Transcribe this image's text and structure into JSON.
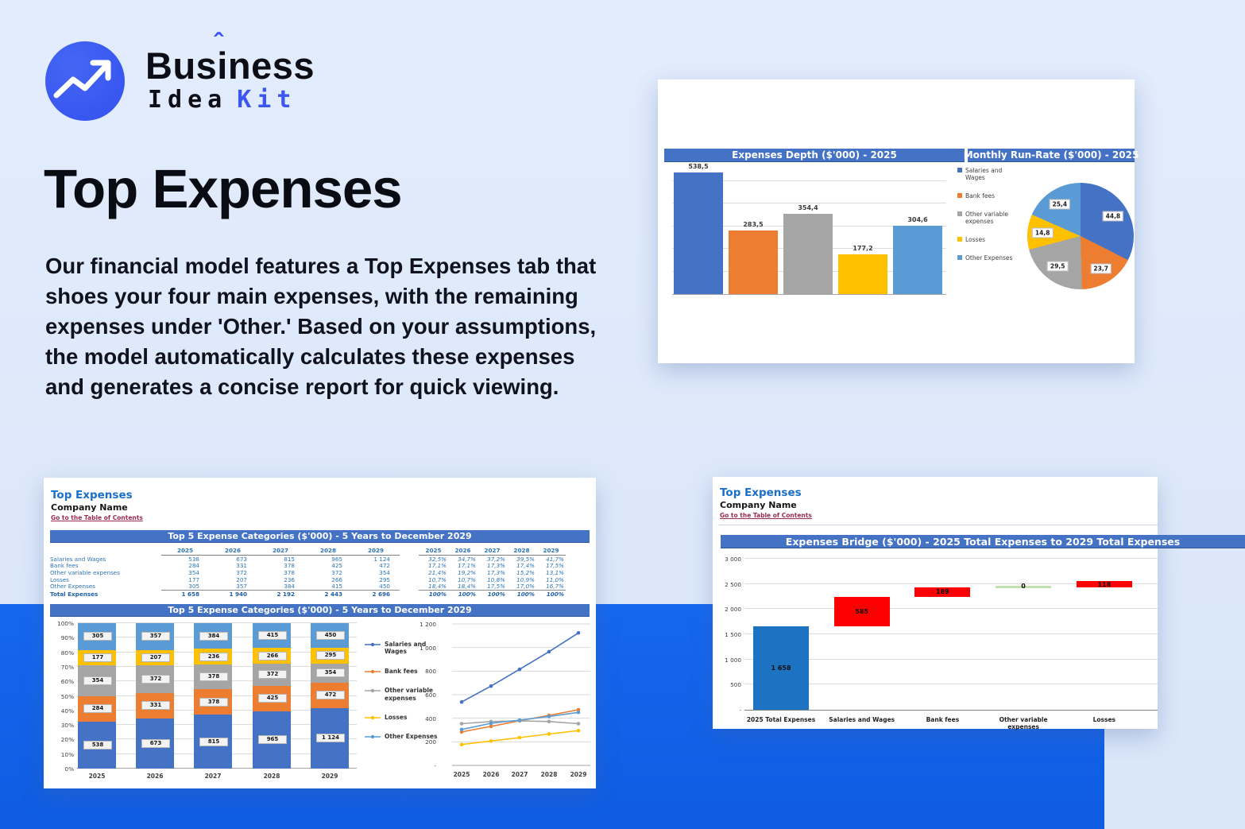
{
  "brand": {
    "part1": "Bus",
    "part2": "i",
    "part3": "ness",
    "hat": "ˆ",
    "word2": "Idea",
    "word3": "Kit"
  },
  "hero": {
    "title": "Top Expenses",
    "body": "Our financial model features a Top Expenses tab that shoes your four main expenses, with the remaining expenses under 'Other.' Based on your assumptions, the model automatically calculates these expenses and generates a concise report for quick viewing."
  },
  "palette": {
    "accent": "#3b57f0",
    "page_bg": "#dde9fb",
    "bottom_band": "#1263e9",
    "excel_header": "#4472C4",
    "series_colors": [
      "#4472C4",
      "#ED7D31",
      "#A5A5A5",
      "#FFC000",
      "#5B9BD5"
    ],
    "waterfall_total": "#1d72c2",
    "waterfall_increase": "#fe0000",
    "waterfall_zero": "#c2dfae",
    "link": "#9a2d50",
    "table_text": "#2e75b6"
  },
  "sheet": {
    "title": "Top Expenses",
    "company": "Company Name",
    "toc": "Go to the Table of Contents"
  },
  "depth_card": {
    "bar_header": "Expenses Depth ($'000) - 2025",
    "pie_header": "Monthly Run-Rate ($'000) - 2025",
    "legend": [
      "Salaries and Wages",
      "Bank fees",
      "Other variable expenses",
      "Losses",
      "Other Expenses"
    ]
  },
  "top5_card": {
    "banner": "Top 5 Expense Categories ($'000) - 5 Years to December 2029",
    "years": [
      "2025",
      "2026",
      "2027",
      "2028",
      "2029"
    ],
    "rows": [
      {
        "label": "Salaries and Wages",
        "values": [
          "538",
          "673",
          "815",
          "965",
          "1 124"
        ],
        "pcts": [
          "32,5%",
          "34,7%",
          "37,2%",
          "39,5%",
          "41,7%"
        ]
      },
      {
        "label": "Bank fees",
        "values": [
          "284",
          "331",
          "378",
          "425",
          "472"
        ],
        "pcts": [
          "17,1%",
          "17,1%",
          "17,3%",
          "17,4%",
          "17,5%"
        ]
      },
      {
        "label": "Other variable expenses",
        "values": [
          "354",
          "372",
          "378",
          "372",
          "354"
        ],
        "pcts": [
          "21,4%",
          "19,2%",
          "17,3%",
          "15,2%",
          "13,1%"
        ]
      },
      {
        "label": "Losses",
        "values": [
          "177",
          "207",
          "236",
          "266",
          "295"
        ],
        "pcts": [
          "10,7%",
          "10,7%",
          "10,8%",
          "10,9%",
          "11,0%"
        ]
      },
      {
        "label": "Other Expenses",
        "values": [
          "305",
          "357",
          "384",
          "415",
          "450"
        ],
        "pcts": [
          "18,4%",
          "18,4%",
          "17,5%",
          "17,0%",
          "16,7%"
        ]
      }
    ],
    "total": {
      "label": "Total Expenses",
      "values": [
        "1 658",
        "1 940",
        "2 192",
        "2 443",
        "2 696"
      ],
      "pcts": [
        "100%",
        "100%",
        "100%",
        "100%",
        "100%"
      ]
    },
    "stacked_y_labels": [
      "100%",
      "90%",
      "80%",
      "70%",
      "60%",
      "50%",
      "40%",
      "30%",
      "20%",
      "10%",
      "0%"
    ],
    "line_y_labels": [
      "1 200",
      "1 000",
      "800",
      "600",
      "400",
      "200",
      "-"
    ]
  },
  "bridge_card": {
    "banner": "Expenses Bridge ($'000) - 2025 Total Expenses to 2029 Total Expenses",
    "y_axis": [
      "3 000",
      "2 500",
      "2 000",
      "1 500",
      "1 000",
      "500",
      "-"
    ]
  },
  "chart_data": [
    {
      "id": "expenses-depth",
      "type": "bar",
      "title": "Expenses Depth ($'000) - 2025",
      "categories": [
        "Salaries and Wages",
        "Bank fees",
        "Other variable expenses",
        "Losses",
        "Other Expenses"
      ],
      "values": [
        538.5,
        283.5,
        354.4,
        177.2,
        304.6
      ],
      "data_labels": [
        "538,5",
        "283,5",
        "354,4",
        "177,2",
        "304,6"
      ],
      "xlabel": "",
      "ylabel": "",
      "ylim": [
        0,
        600
      ],
      "gridline_step": 100,
      "grid": true,
      "legend_position": "right"
    },
    {
      "id": "monthly-run-rate",
      "type": "pie",
      "title": "Monthly Run-Rate ($'000) - 2025",
      "labels": [
        "Salaries and Wages",
        "Bank fees",
        "Other variable expenses",
        "Losses",
        "Other Expenses"
      ],
      "values": [
        44.8,
        23.7,
        29.5,
        14.8,
        25.4
      ],
      "data_labels": [
        "44,8",
        "23,7",
        "29,5",
        "14,8",
        "25,4"
      ]
    },
    {
      "id": "top5-stacked",
      "type": "bar",
      "variant": "stacked-100",
      "title": "Top 5 Expense Categories ($'000) - 5 Years to December 2029",
      "categories": [
        "2025",
        "2026",
        "2027",
        "2028",
        "2029"
      ],
      "series": [
        {
          "name": "Salaries and Wages",
          "values": [
            538,
            673,
            815,
            965,
            1124
          ],
          "labels": [
            "538",
            "673",
            "815",
            "965",
            "1 124"
          ]
        },
        {
          "name": "Bank fees",
          "values": [
            284,
            331,
            378,
            425,
            472
          ],
          "labels": [
            "284",
            "331",
            "378",
            "425",
            "472"
          ]
        },
        {
          "name": "Other variable expenses",
          "values": [
            354,
            372,
            378,
            372,
            354
          ],
          "labels": [
            "354",
            "372",
            "378",
            "372",
            "354"
          ]
        },
        {
          "name": "Losses",
          "values": [
            177,
            207,
            236,
            266,
            295
          ],
          "labels": [
            "177",
            "207",
            "236",
            "266",
            "295"
          ]
        },
        {
          "name": "Other Expenses",
          "values": [
            305,
            357,
            384,
            415,
            450
          ],
          "labels": [
            "305",
            "357",
            "384",
            "415",
            "450"
          ]
        }
      ],
      "totals": [
        1658,
        1940,
        2192,
        2443,
        2696
      ],
      "ylim": [
        0,
        100
      ],
      "grid": true,
      "legend_position": "right"
    },
    {
      "id": "top5-line",
      "type": "line",
      "categories": [
        "2025",
        "2026",
        "2027",
        "2028",
        "2029"
      ],
      "series": [
        {
          "name": "Salaries and Wages",
          "values": [
            538,
            673,
            815,
            965,
            1124
          ]
        },
        {
          "name": "Bank fees",
          "values": [
            284,
            331,
            378,
            425,
            472
          ]
        },
        {
          "name": "Other variable expenses",
          "values": [
            354,
            372,
            378,
            372,
            354
          ]
        },
        {
          "name": "Losses",
          "values": [
            177,
            207,
            236,
            266,
            295
          ]
        },
        {
          "name": "Other Expenses",
          "values": [
            305,
            357,
            384,
            415,
            450
          ]
        }
      ],
      "ylim": [
        0,
        1200
      ],
      "ytick_step": 200,
      "grid": true
    },
    {
      "id": "expenses-bridge",
      "type": "waterfall",
      "title": "Expenses Bridge ($'000) - 2025 Total Expenses to 2029 Total Expenses",
      "categories": [
        "2025 Total Expenses",
        "Salaries and Wages",
        "Bank fees",
        "Other variable expenses",
        "Losses"
      ],
      "steps": [
        {
          "type": "total",
          "value": 1658,
          "label": "1 658"
        },
        {
          "type": "increase",
          "value": 585,
          "label": "585"
        },
        {
          "type": "increase",
          "value": 189,
          "label": "189"
        },
        {
          "type": "increase",
          "value": 0,
          "label": "0"
        },
        {
          "type": "increase",
          "value": 118,
          "label": "118"
        }
      ],
      "ylim": [
        0,
        3000
      ],
      "ytick_step": 500,
      "grid": true
    }
  ]
}
